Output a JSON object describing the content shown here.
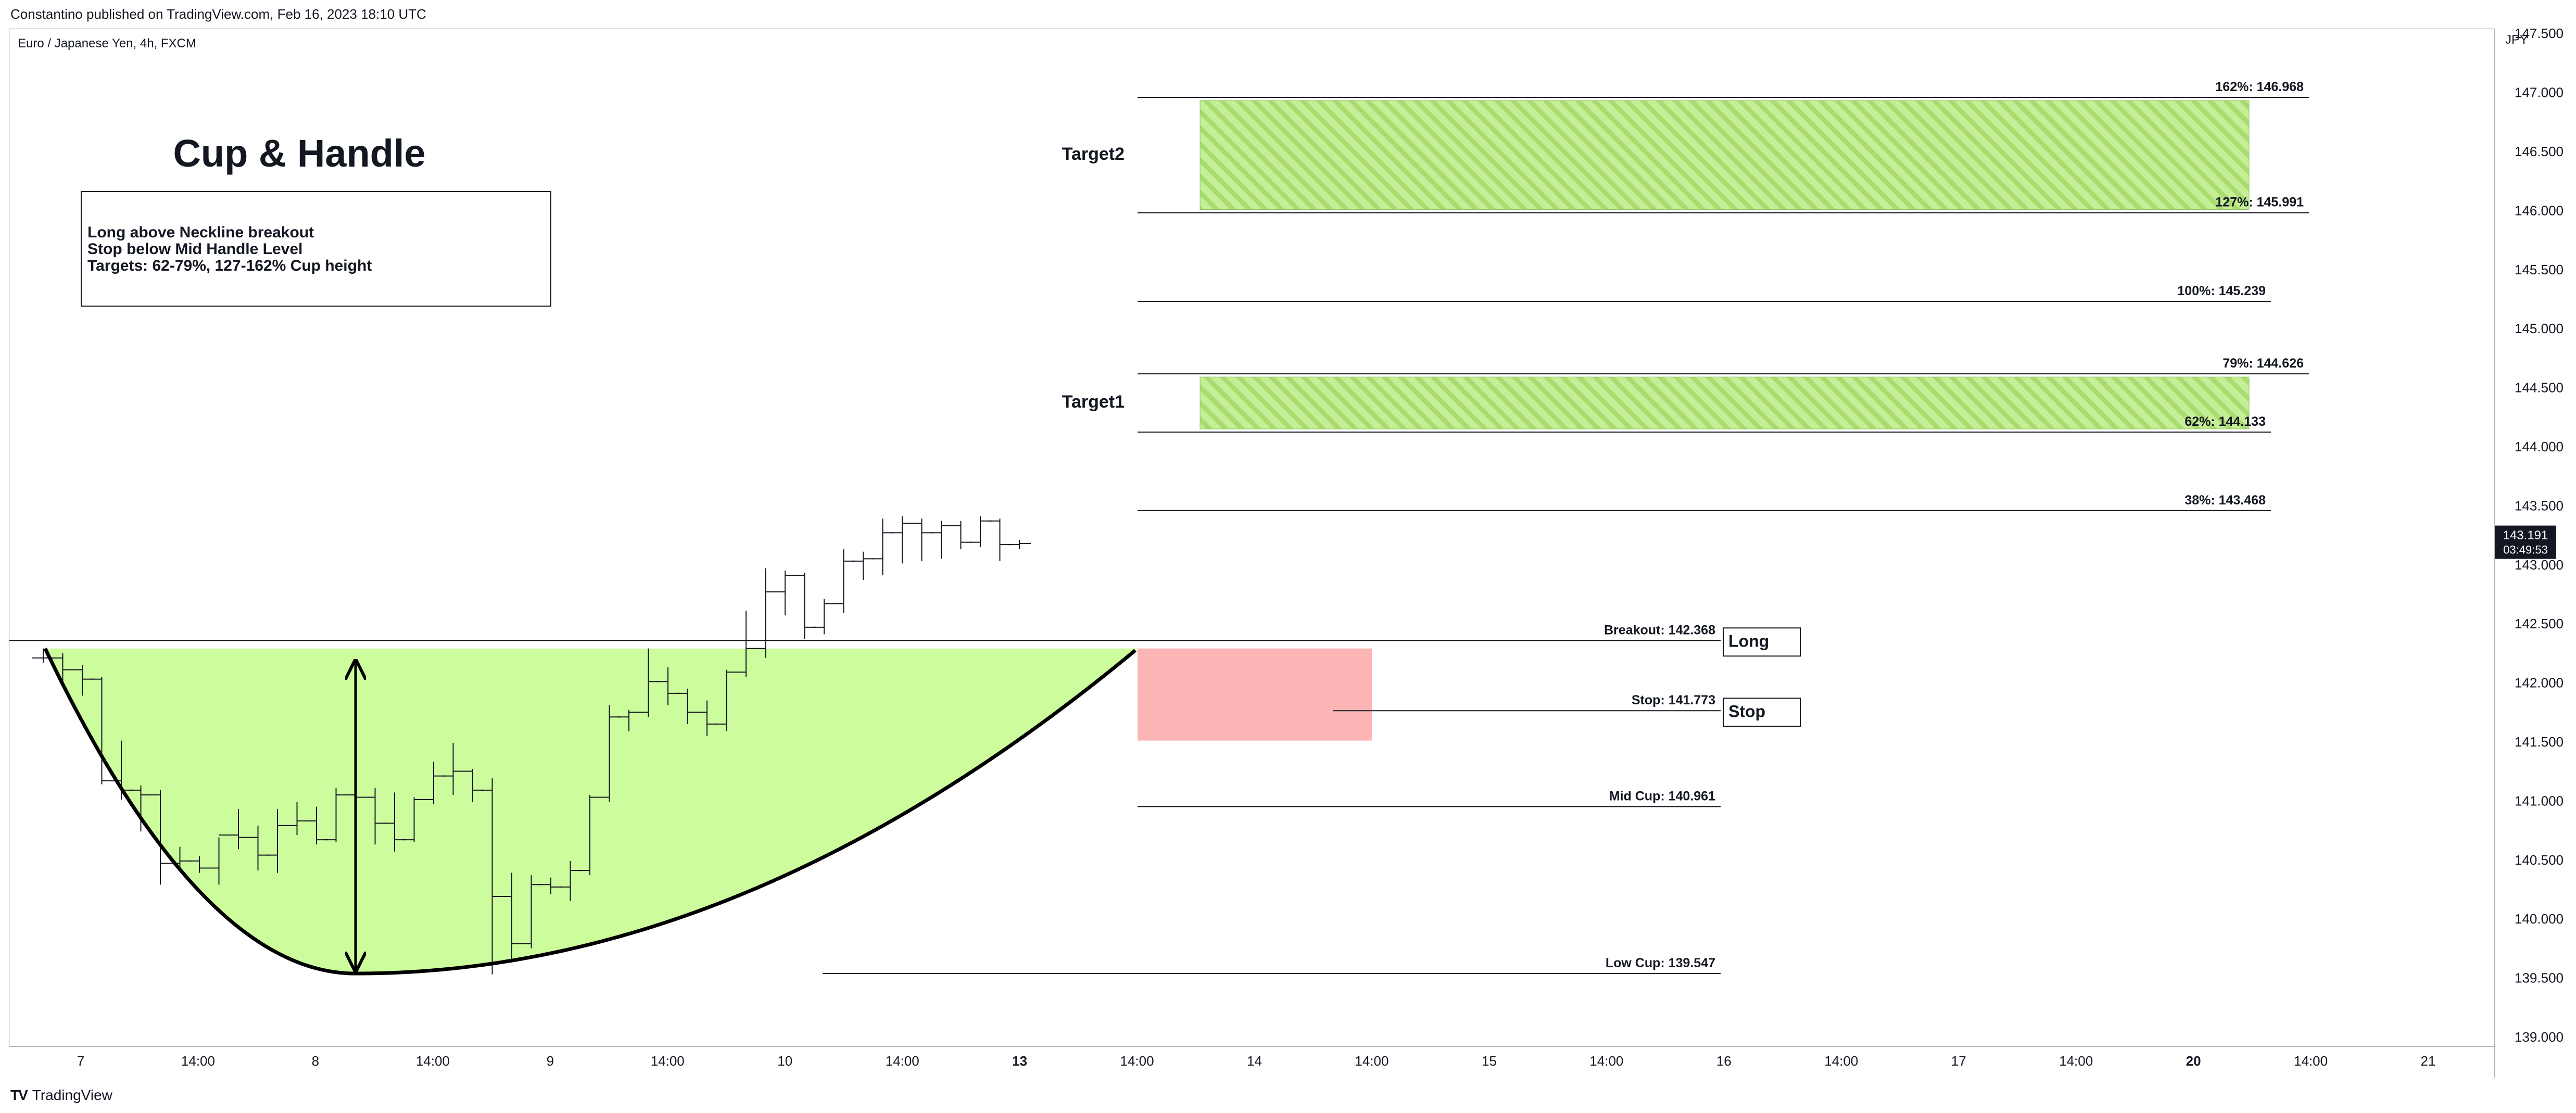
{
  "header": {
    "published": "Constantino published on TradingView.com, Feb 16, 2023 18:10 UTC",
    "symbol": "Euro / Japanese Yen, 4h, FXCM"
  },
  "footer": {
    "brand": "TradingView",
    "logo": "TV"
  },
  "chart_data": {
    "type": "ohlc",
    "title": "Cup & Handle",
    "currency": "JPY",
    "ylim": [
      138.93,
      147.55
    ],
    "y_ticks": [
      "139.000",
      "139.500",
      "140.000",
      "140.500",
      "141.000",
      "141.500",
      "142.000",
      "142.500",
      "143.000",
      "143.500",
      "144.000",
      "144.500",
      "145.000",
      "145.500",
      "146.000",
      "146.500",
      "147.000",
      "147.500"
    ],
    "x_ticks": [
      "7",
      "14:00",
      "8",
      "14:00",
      "9",
      "14:00",
      "10",
      "14:00",
      "13",
      "14:00",
      "14",
      "14:00",
      "15",
      "14:00",
      "16",
      "14:00",
      "17",
      "14:00",
      "20",
      "14:00",
      "21"
    ],
    "bold_x_ticks": [
      "13",
      "20"
    ],
    "price_label": {
      "value": "143.191",
      "countdown": "03:49:53"
    },
    "note": {
      "lines": [
        "Long above Neckline breakout",
        "Stop below Mid Handle Level",
        "Targets: 62-79%, 127-162% Cup height"
      ]
    },
    "levels": [
      {
        "label": "162%: 146.968",
        "value": 146.968
      },
      {
        "label": "127%: 145.991",
        "value": 145.991
      },
      {
        "label": "100%: 145.239",
        "value": 145.239
      },
      {
        "label": "79%: 144.626",
        "value": 144.626
      },
      {
        "label": "62%: 144.133",
        "value": 144.133
      },
      {
        "label": "38%: 143.468",
        "value": 143.468
      },
      {
        "label": "Breakout: 142.368",
        "value": 142.368
      },
      {
        "label": "Stop: 141.773",
        "value": 141.773
      },
      {
        "label": "Mid Cup: 140.961",
        "value": 140.961
      },
      {
        "label": "Low Cup: 139.547",
        "value": 139.547
      }
    ],
    "targets": [
      {
        "label": "Target2",
        "from": 145.991,
        "to": 146.968
      },
      {
        "label": "Target1",
        "from": 144.133,
        "to": 144.626
      }
    ],
    "tags": [
      "Long",
      "Stop"
    ],
    "colors": {
      "cup_fill": "#ccfc9c",
      "target_fill": "#c6ee96",
      "target_stripe": "#a8dc70",
      "stop_zone": "#fbb5b5",
      "price_label": "#131722"
    },
    "bars": [
      {
        "t": 0.0,
        "o": 142.22,
        "h": 142.3,
        "l": 142.18,
        "c": 142.22
      },
      {
        "t": 0.5,
        "o": 142.22,
        "h": 142.26,
        "l": 142.0,
        "c": 142.12
      },
      {
        "t": 1.0,
        "o": 142.12,
        "h": 142.16,
        "l": 141.9,
        "c": 142.04
      },
      {
        "t": 1.5,
        "o": 142.04,
        "h": 142.06,
        "l": 141.15,
        "c": 141.18
      },
      {
        "t": 2.0,
        "o": 141.18,
        "h": 141.52,
        "l": 141.02,
        "c": 141.1
      },
      {
        "t": 2.5,
        "o": 141.1,
        "h": 141.14,
        "l": 140.75,
        "c": 141.06
      },
      {
        "t": 3.0,
        "o": 141.06,
        "h": 141.1,
        "l": 140.3,
        "c": 140.48
      },
      {
        "t": 3.5,
        "o": 140.48,
        "h": 140.62,
        "l": 140.42,
        "c": 140.5
      },
      {
        "t": 4.0,
        "o": 140.5,
        "h": 140.54,
        "l": 140.4,
        "c": 140.44
      },
      {
        "t": 4.5,
        "o": 140.44,
        "h": 140.7,
        "l": 140.3,
        "c": 140.72
      },
      {
        "t": 5.0,
        "o": 140.72,
        "h": 140.94,
        "l": 140.6,
        "c": 140.7
      },
      {
        "t": 5.5,
        "o": 140.7,
        "h": 140.8,
        "l": 140.42,
        "c": 140.55
      },
      {
        "t": 6.0,
        "o": 140.55,
        "h": 140.94,
        "l": 140.4,
        "c": 140.8
      },
      {
        "t": 6.5,
        "o": 140.8,
        "h": 141.0,
        "l": 140.72,
        "c": 140.84
      },
      {
        "t": 7.0,
        "o": 140.84,
        "h": 140.96,
        "l": 140.64,
        "c": 140.68
      },
      {
        "t": 7.5,
        "o": 140.68,
        "h": 141.12,
        "l": 140.66,
        "c": 141.06
      },
      {
        "t": 8.0,
        "o": 141.06,
        "h": 141.12,
        "l": 140.62,
        "c": 141.04
      },
      {
        "t": 8.5,
        "o": 141.04,
        "h": 141.12,
        "l": 140.64,
        "c": 140.82
      },
      {
        "t": 9.0,
        "o": 140.82,
        "h": 141.08,
        "l": 140.58,
        "c": 140.68
      },
      {
        "t": 9.5,
        "o": 140.68,
        "h": 141.04,
        "l": 140.66,
        "c": 141.02
      },
      {
        "t": 10.0,
        "o": 141.02,
        "h": 141.34,
        "l": 140.98,
        "c": 141.22
      },
      {
        "t": 10.5,
        "o": 141.22,
        "h": 141.5,
        "l": 141.06,
        "c": 141.26
      },
      {
        "t": 11.0,
        "o": 141.26,
        "h": 141.28,
        "l": 141.0,
        "c": 141.1
      },
      {
        "t": 11.5,
        "o": 141.1,
        "h": 141.2,
        "l": 139.54,
        "c": 140.2
      },
      {
        "t": 12.0,
        "o": 140.2,
        "h": 140.4,
        "l": 139.64,
        "c": 139.8
      },
      {
        "t": 12.5,
        "o": 139.8,
        "h": 140.38,
        "l": 139.76,
        "c": 140.3
      },
      {
        "t": 13.0,
        "o": 140.3,
        "h": 140.36,
        "l": 140.22,
        "c": 140.28
      },
      {
        "t": 13.5,
        "o": 140.28,
        "h": 140.5,
        "l": 140.16,
        "c": 140.42
      },
      {
        "t": 14.0,
        "o": 140.42,
        "h": 141.06,
        "l": 140.38,
        "c": 141.04
      },
      {
        "t": 14.5,
        "o": 141.04,
        "h": 141.82,
        "l": 141.0,
        "c": 141.72
      },
      {
        "t": 15.0,
        "o": 141.72,
        "h": 141.78,
        "l": 141.6,
        "c": 141.76
      },
      {
        "t": 15.5,
        "o": 141.76,
        "h": 142.3,
        "l": 141.72,
        "c": 142.02
      },
      {
        "t": 16.0,
        "o": 142.02,
        "h": 142.14,
        "l": 141.82,
        "c": 141.92
      },
      {
        "t": 16.5,
        "o": 141.92,
        "h": 141.96,
        "l": 141.66,
        "c": 141.76
      },
      {
        "t": 17.0,
        "o": 141.76,
        "h": 141.86,
        "l": 141.56,
        "c": 141.66
      },
      {
        "t": 17.5,
        "o": 141.66,
        "h": 142.12,
        "l": 141.6,
        "c": 142.1
      },
      {
        "t": 18.0,
        "o": 142.1,
        "h": 142.62,
        "l": 142.06,
        "c": 142.3
      },
      {
        "t": 18.5,
        "o": 142.3,
        "h": 142.98,
        "l": 142.22,
        "c": 142.78
      },
      {
        "t": 19.0,
        "o": 142.78,
        "h": 142.96,
        "l": 142.58,
        "c": 142.92
      },
      {
        "t": 19.5,
        "o": 142.92,
        "h": 142.94,
        "l": 142.38,
        "c": 142.48
      },
      {
        "t": 20.0,
        "o": 142.48,
        "h": 142.72,
        "l": 142.42,
        "c": 142.68
      },
      {
        "t": 20.5,
        "o": 142.68,
        "h": 143.14,
        "l": 142.6,
        "c": 143.04
      },
      {
        "t": 21.0,
        "o": 143.04,
        "h": 143.12,
        "l": 142.88,
        "c": 143.06
      },
      {
        "t": 21.5,
        "o": 143.06,
        "h": 143.4,
        "l": 142.92,
        "c": 143.28
      },
      {
        "t": 22.0,
        "o": 143.28,
        "h": 143.42,
        "l": 143.02,
        "c": 143.36
      },
      {
        "t": 22.5,
        "o": 143.36,
        "h": 143.4,
        "l": 143.04,
        "c": 143.28
      },
      {
        "t": 23.0,
        "o": 143.28,
        "h": 143.38,
        "l": 143.06,
        "c": 143.34
      },
      {
        "t": 23.5,
        "o": 143.34,
        "h": 143.38,
        "l": 143.14,
        "c": 143.2
      },
      {
        "t": 24.0,
        "o": 143.2,
        "h": 143.42,
        "l": 143.16,
        "c": 143.38
      },
      {
        "t": 24.5,
        "o": 143.38,
        "h": 143.4,
        "l": 143.04,
        "c": 143.18
      },
      {
        "t": 25.0,
        "o": 143.18,
        "h": 143.22,
        "l": 143.14,
        "c": 143.19
      }
    ]
  }
}
